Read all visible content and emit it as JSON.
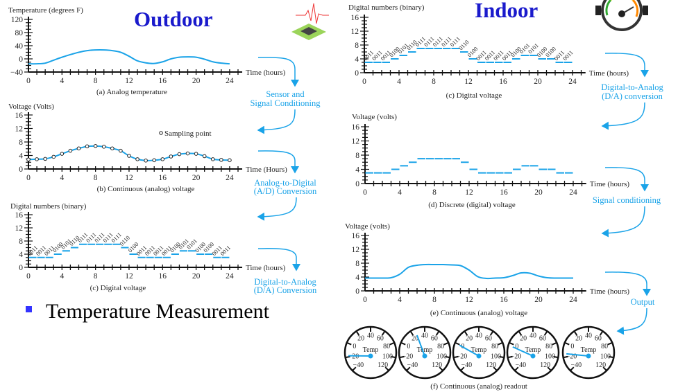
{
  "slide": {
    "outdoor_title": "Outdoor",
    "indoor_title": "Indoor",
    "bullet_text": "Temperature Measurement",
    "accent_color": "#1a1acc",
    "flow_color": "#1aa3e8",
    "line_color": "#1aa3e8",
    "icons": [
      "sensor-chip-icon",
      "pressure-gauge-icon"
    ]
  },
  "flow_labels": {
    "sensor_1": "Sensor and",
    "sensor_2": "Signal Conditioning",
    "adc_1": "Analog-to-Digital",
    "adc_2": "(A/D) Conversion",
    "dac_left_1": "Digital-to-Analog",
    "dac_left_2": "(D/A) Conversion",
    "dac_right_1": "Digital-to-Analog",
    "dac_right_2": "(D/A) conversion",
    "signal_cond": "Signal conditioning",
    "output": "Output"
  },
  "chart_data": [
    {
      "id": "a",
      "type": "line",
      "ylabel": "Temperature (degrees F)",
      "xlabel": "Time (hours)",
      "caption": "(a) Analog temperature",
      "ylim": [
        -40,
        120
      ],
      "yticks": [
        "120",
        "80",
        "40",
        "0",
        "−40"
      ],
      "ytick_values": [
        120,
        80,
        40,
        0,
        -40
      ],
      "xlim": [
        0,
        24
      ],
      "xticks": [
        "0",
        "4",
        "8",
        "12",
        "16",
        "20",
        "24"
      ],
      "x": [
        0,
        1,
        2,
        3,
        4,
        5,
        6,
        7,
        8,
        9,
        10,
        11,
        12,
        13,
        14,
        15,
        16,
        17,
        18,
        19,
        20,
        21,
        22,
        23,
        24
      ],
      "values": [
        -15,
        -15,
        -13,
        -4,
        5,
        13,
        20,
        25,
        27,
        27,
        25,
        20,
        8,
        -6,
        -12,
        -14,
        -9,
        0,
        5,
        6,
        5,
        -1,
        -9,
        -13,
        -15
      ]
    },
    {
      "id": "b",
      "type": "line",
      "ylabel": "Voltage (Volts)",
      "xlabel": "Time (Hours)",
      "caption": "(b) Continuous (analog) voltage",
      "legend": "Sampling point",
      "ylim": [
        0,
        16
      ],
      "yticks": [
        "16",
        "12",
        "8",
        "4",
        "0"
      ],
      "ytick_values": [
        16,
        12,
        8,
        4,
        0
      ],
      "xlim": [
        0,
        24
      ],
      "xticks": [
        "0",
        "4",
        "8",
        "12",
        "16",
        "20",
        "24"
      ],
      "x": [
        0,
        1,
        2,
        3,
        4,
        5,
        6,
        7,
        8,
        9,
        10,
        11,
        12,
        13,
        14,
        15,
        16,
        17,
        18,
        19,
        20,
        21,
        22,
        23,
        24
      ],
      "values": [
        2.8,
        2.9,
        3.0,
        3.6,
        4.5,
        5.4,
        6.1,
        6.7,
        6.8,
        6.6,
        6.1,
        5.4,
        3.9,
        2.9,
        2.5,
        2.6,
        2.9,
        3.7,
        4.4,
        4.6,
        4.5,
        3.8,
        2.9,
        2.7,
        2.6
      ]
    },
    {
      "id": "c_left",
      "type": "step",
      "ylabel": "Digital numbers (binary)",
      "xlabel": "Time (hours)",
      "caption": "(c) Digital voltage",
      "ylim": [
        0,
        16
      ],
      "yticks": [
        "16",
        "12",
        "8",
        "4",
        "0"
      ],
      "ytick_values": [
        16,
        12,
        8,
        4,
        0
      ],
      "xlim": [
        0,
        24
      ],
      "xticks": [
        "0",
        "4",
        "8",
        "12",
        "16",
        "20",
        "24"
      ],
      "values": [
        3,
        3,
        3,
        4,
        5,
        6,
        7,
        7,
        7,
        7,
        7,
        6,
        4,
        3,
        3,
        3,
        3,
        4,
        5,
        5,
        4,
        4,
        3,
        3
      ],
      "labels": [
        "0011",
        "0011",
        "0011",
        "0100",
        "0101",
        "0110",
        "0111",
        "0111",
        "0111",
        "0111",
        "0111",
        "0110",
        "0100",
        "0011",
        "0011",
        "0011",
        "0011",
        "0100",
        "0101",
        "0101",
        "0100",
        "0100",
        "0011",
        "0011"
      ]
    },
    {
      "id": "c_right",
      "type": "step",
      "ylabel": "Digital numbers (binary)",
      "xlabel": "Time (hours)",
      "caption": "(c) Digital voltage",
      "ylim": [
        0,
        16
      ],
      "yticks": [
        "16",
        "12",
        "8",
        "4",
        "0"
      ],
      "ytick_values": [
        16,
        12,
        8,
        4,
        0
      ],
      "xlim": [
        0,
        24
      ],
      "xticks": [
        "0",
        "4",
        "8",
        "12",
        "16",
        "20",
        "24"
      ],
      "values": [
        3,
        3,
        3,
        4,
        5,
        6,
        7,
        7,
        7,
        7,
        7,
        6,
        4,
        3,
        3,
        3,
        3,
        4,
        5,
        5,
        4,
        4,
        3,
        3
      ],
      "labels": [
        "0011",
        "0011",
        "0011",
        "0100",
        "0101",
        "0110",
        "0111",
        "0111",
        "0111",
        "0111",
        "0111",
        "0110",
        "0100",
        "0011",
        "0011",
        "0011",
        "0011",
        "0100",
        "0101",
        "0101",
        "0100",
        "0100",
        "0011",
        "0011"
      ]
    },
    {
      "id": "d",
      "type": "step",
      "ylabel": "Voltage (volts)",
      "xlabel": "Time (hours)",
      "caption": "(d) Discrete (digital) voltage",
      "ylim": [
        0,
        16
      ],
      "yticks": [
        "16",
        "12",
        "8",
        "4",
        "0"
      ],
      "ytick_values": [
        16,
        12,
        8,
        4,
        0
      ],
      "xlim": [
        0,
        24
      ],
      "xticks": [
        "0",
        "4",
        "8",
        "12",
        "16",
        "20",
        "24"
      ],
      "values": [
        3,
        3,
        3,
        4,
        5,
        6,
        7,
        7,
        7,
        7,
        7,
        6,
        4,
        3,
        3,
        3,
        3,
        4,
        5,
        5,
        4,
        4,
        3,
        3
      ]
    },
    {
      "id": "e",
      "type": "line",
      "ylabel": "Voltage (volts)",
      "xlabel": "Time (hours)",
      "caption": "(e) Continuous (analog) voltage",
      "ylim": [
        0,
        16
      ],
      "yticks": [
        "16",
        "12",
        "8",
        "4",
        "0"
      ],
      "ytick_values": [
        16,
        12,
        8,
        4,
        0
      ],
      "xlim": [
        0,
        24
      ],
      "xticks": [
        "0",
        "4",
        "8",
        "12",
        "16",
        "20",
        "24"
      ],
      "x": [
        0,
        1,
        2,
        3,
        4,
        5,
        6,
        7,
        8,
        9,
        10,
        11,
        12,
        13,
        14,
        15,
        16,
        17,
        18,
        19,
        20,
        21,
        22,
        23,
        24
      ],
      "values": [
        3.7,
        3.7,
        3.7,
        3.8,
        4.8,
        6.8,
        7.4,
        7.6,
        7.6,
        7.6,
        7.5,
        7.3,
        6.0,
        4.1,
        3.6,
        3.7,
        3.8,
        4.4,
        5.2,
        5.1,
        4.3,
        3.8,
        3.7,
        3.7,
        3.7
      ]
    }
  ],
  "gauges": {
    "caption": "(f) Continuous (analog) readout",
    "center_label": "Temp",
    "scale_labels": [
      "−40",
      "−20",
      "0",
      "20",
      "40",
      "60",
      "80",
      "100",
      "120"
    ],
    "scale_values": [
      -40,
      -20,
      0,
      20,
      40,
      60,
      80,
      100,
      120
    ],
    "readings": [
      -13,
      28,
      4,
      1,
      -10
    ]
  }
}
